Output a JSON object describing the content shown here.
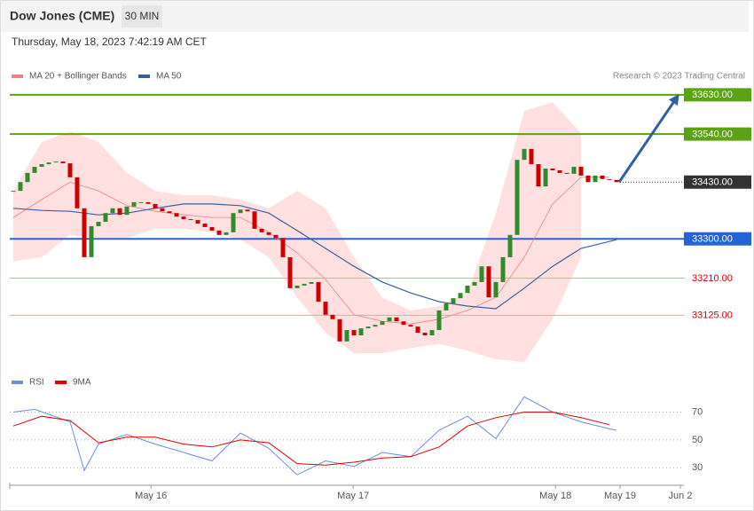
{
  "chart_data": [
    {
      "type": "candlestick",
      "title": "Dow Jones (CME)",
      "interval": "30 MIN",
      "timestamp": "Thursday, May 18, 2023 7:42:19 AM CET",
      "credit": "Research © 2023 Trading Central",
      "up_color": "#2e8b2e",
      "down_color": "#cc0000",
      "close": [
        33410,
        33430,
        33451,
        33465,
        33471,
        33475,
        33477,
        33473,
        33441,
        33370,
        33258,
        33329,
        33339,
        33359,
        33370,
        33355,
        33374,
        33384,
        33384,
        33380,
        33370,
        33363,
        33359,
        33351,
        33345,
        33343,
        33335,
        33327,
        33319,
        33309,
        33315,
        33359,
        33367,
        33363,
        33323,
        33315,
        33309,
        33302,
        33258,
        33187,
        33193,
        33197,
        33201,
        33156,
        33126,
        33116,
        33065,
        33091,
        33079,
        33095,
        33099,
        33103,
        33111,
        33120,
        33111,
        33103,
        33099,
        33085,
        33079,
        33091,
        33136,
        33152,
        33164,
        33176,
        33193,
        33201,
        33237,
        33166,
        33201,
        33258,
        33309,
        33481,
        33506,
        33471,
        33420,
        33461,
        33457,
        33451,
        33449,
        33465,
        33445,
        33430,
        33445,
        33437,
        33435,
        33430
      ],
      "xlim": [
        -0.5,
        94.5
      ],
      "ylim": [
        33020,
        33650
      ],
      "series": [
        {
          "name": "MA 20 + Bollinger Bands",
          "color": "#f08080",
          "x": [
            0,
            4,
            8,
            12,
            16,
            20,
            24,
            28,
            32,
            36,
            40,
            44,
            48,
            52,
            56,
            60,
            64,
            68,
            72,
            76,
            80,
            84
          ],
          "values": [
            33349,
            33390,
            33430,
            33410,
            33376,
            33363,
            33355,
            33349,
            33349,
            33315,
            33268,
            33207,
            33126,
            33111,
            33105,
            33116,
            33136,
            33166,
            33258,
            33380,
            33441,
            33441
          ],
          "band": {
            "color": "#ffe0e0",
            "x": [
              0,
              4,
              8,
              12,
              16,
              20,
              24,
              28,
              32,
              36,
              40,
              44,
              48,
              52,
              56,
              60,
              64,
              68,
              72,
              76,
              80
            ],
            "upper": [
              33410,
              33522,
              33546,
              33522,
              33451,
              33410,
              33400,
              33400,
              33390,
              33370,
              33410,
              33370,
              33258,
              33166,
              33136,
              33146,
              33176,
              33359,
              33593,
              33613,
              33542
            ],
            "lower": [
              33248,
              33258,
              33309,
              33302,
              33302,
              33323,
              33323,
              33315,
              33298,
              33258,
              33166,
              33085,
              33038,
              33038,
              33050,
              33059,
              33044,
              33024,
              33018,
              33116,
              33258
            ]
          }
        },
        {
          "name": "MA 50",
          "color": "#3a5fa0",
          "x": [
            0,
            4,
            8,
            12,
            16,
            20,
            24,
            28,
            32,
            36,
            40,
            44,
            48,
            52,
            56,
            60,
            64,
            68,
            72,
            76,
            80,
            85
          ],
          "values": [
            33370,
            33365,
            33363,
            33355,
            33359,
            33370,
            33380,
            33380,
            33376,
            33359,
            33319,
            33278,
            33237,
            33201,
            33176,
            33156,
            33146,
            33140,
            33187,
            33237,
            33278,
            33298
          ]
        }
      ],
      "levels": [
        {
          "value": 33630,
          "label": "33630.00",
          "color": "#5ba314",
          "line": "solid",
          "box": true
        },
        {
          "value": 33540,
          "label": "33540.00",
          "color": "#5ba314",
          "line": "solid",
          "box": true
        },
        {
          "value": 33430,
          "label": "33430.00",
          "color": "#333333",
          "line": "dotted",
          "box": true
        },
        {
          "value": 33300,
          "label": "33300.00",
          "color": "#2563d6",
          "line": "solid",
          "box": true
        },
        {
          "value": 33210,
          "label": "33210.00",
          "color": "#ff9a9a",
          "line": "solid",
          "box": false,
          "label_color": "#dd0000"
        },
        {
          "value": 33125,
          "label": "33125.00",
          "color": "#ff9a9a",
          "line": "solid",
          "box": false,
          "label_color": "#dd0000"
        }
      ],
      "arrow_color": "#2f5fa5"
    },
    {
      "type": "line",
      "xlim": [
        -0.5,
        94.5
      ],
      "ylim": [
        20,
        85
      ],
      "yticks": [
        70,
        50,
        30
      ],
      "grid": true,
      "xticks": [
        {
          "value": 19.4,
          "label": "May 16"
        },
        {
          "value": 47.9,
          "label": "May 17"
        },
        {
          "value": 76.4,
          "label": "May 18"
        },
        {
          "value": 85.5,
          "label": "May 19"
        },
        {
          "value": 94,
          "label": "Jun 2"
        }
      ],
      "series": [
        {
          "name": "RSI",
          "color": "#6a8ee0",
          "x": [
            0,
            3,
            8,
            10,
            12,
            16,
            20,
            24,
            28,
            32,
            36,
            40,
            44,
            48,
            52,
            56,
            60,
            64,
            68,
            72,
            76,
            80,
            84,
            85
          ],
          "values": [
            70,
            72,
            63,
            28,
            47,
            54,
            47,
            41,
            35,
            55,
            44,
            25,
            35,
            31,
            41,
            38,
            57,
            67,
            51,
            81,
            70,
            63,
            58,
            57
          ]
        },
        {
          "name": "9MA",
          "color": "#e00000",
          "x": [
            0,
            4,
            8,
            12,
            16,
            20,
            24,
            28,
            32,
            36,
            40,
            44,
            48,
            52,
            56,
            60,
            64,
            68,
            72,
            76,
            80,
            84
          ],
          "values": [
            60,
            67,
            64,
            48,
            52,
            52,
            47,
            45,
            50,
            48,
            33,
            32,
            34,
            37,
            38,
            45,
            60,
            66,
            70,
            70,
            66,
            61
          ]
        }
      ]
    }
  ]
}
